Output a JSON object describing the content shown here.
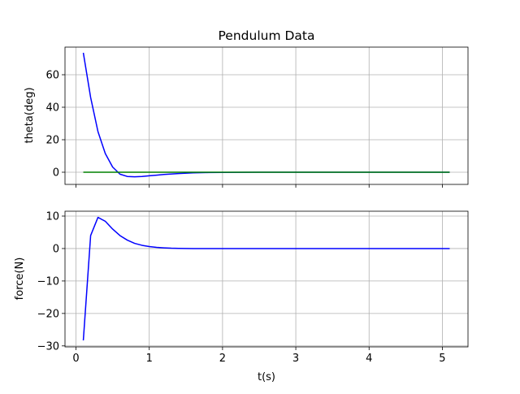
{
  "chart_data": {
    "title": "Pendulum Data",
    "xlabel": "t(s)",
    "shared_x": true,
    "xlim": [
      -0.15,
      5.35
    ],
    "x_ticks": [
      0,
      1,
      2,
      3,
      4,
      5
    ],
    "grid": true,
    "colors": {
      "theta": "#0000ff",
      "reference": "#008000",
      "force": "#0000ff"
    },
    "subplots": [
      {
        "type": "line",
        "ylabel": "theta(deg)",
        "ylim": [
          -7.5,
          77
        ],
        "y_ticks": [
          0,
          20,
          40,
          60
        ],
        "series": [
          {
            "color": "#0000ff",
            "x": [
              0.1,
              0.2,
              0.3,
              0.4,
              0.5,
              0.6,
              0.7,
              0.8,
              0.9,
              1.0,
              1.1,
              1.2,
              1.4,
              1.6,
              1.8,
              2.0,
              2.5,
              3.0,
              3.5,
              4.0,
              4.5,
              5.1
            ],
            "y": [
              73.5,
              46,
              25,
              11.5,
              3.2,
              -1.2,
              -2.6,
              -2.8,
              -2.6,
              -2.2,
              -1.8,
              -1.4,
              -0.8,
              -0.4,
              -0.2,
              -0.1,
              0,
              0,
              0,
              0,
              0,
              0
            ]
          },
          {
            "color": "#008000",
            "x": [
              0.1,
              5.1
            ],
            "y": [
              0,
              0
            ]
          }
        ]
      },
      {
        "type": "line",
        "ylabel": "force(N)",
        "ylim": [
          -30.3,
          11.5
        ],
        "y_ticks": [
          -30,
          -20,
          -10,
          0,
          10
        ],
        "series": [
          {
            "color": "#0000ff",
            "x": [
              0.1,
              0.2,
              0.3,
              0.4,
              0.5,
              0.6,
              0.7,
              0.8,
              0.9,
              1.0,
              1.1,
              1.2,
              1.3,
              1.4,
              1.6,
              1.8,
              2.0,
              2.5,
              3.0,
              3.5,
              4.0,
              4.5,
              5.1
            ],
            "y": [
              -28.3,
              4.0,
              9.6,
              8.4,
              6.0,
              4.0,
              2.6,
              1.6,
              1.0,
              0.6,
              0.35,
              0.2,
              0.1,
              0.05,
              0,
              0,
              0,
              0,
              0,
              0,
              0,
              0,
              0
            ]
          }
        ]
      }
    ]
  }
}
